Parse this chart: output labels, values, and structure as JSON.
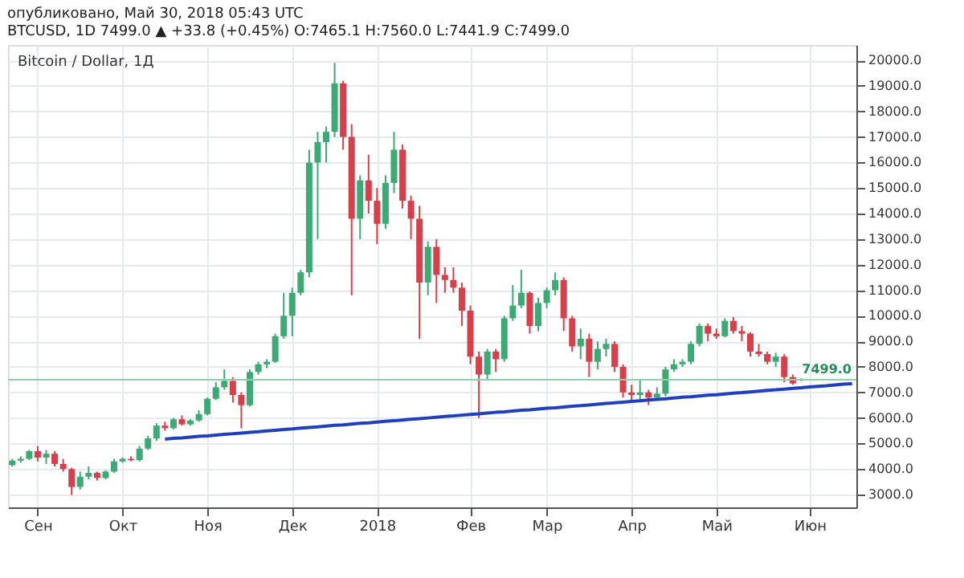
{
  "chart_data": {
    "type": "candlestick",
    "title": "Bitcoin / Dollar, 1Д",
    "annotations": [
      "опубликовано, Май 30, 2018 05:43 UTC",
      "BTCUSD, 1D 7499.0 ▲ +33.8 (+0.45%) O:7465.1 H:7560.0 L:7441.9 C:7499.0"
    ],
    "categories": [
      null,
      null,
      null,
      "Сен",
      null,
      null,
      null,
      null,
      null,
      null,
      null,
      null,
      null,
      "Окт",
      null,
      null,
      null,
      null,
      null,
      null,
      null,
      null,
      null,
      "Ноя",
      null,
      null,
      null,
      null,
      null,
      null,
      null,
      null,
      null,
      "Дек",
      null,
      null,
      null,
      null,
      null,
      null,
      null,
      null,
      null,
      "2018",
      null,
      null,
      null,
      null,
      null,
      null,
      null,
      null,
      null,
      null,
      "Фев",
      null,
      null,
      null,
      null,
      null,
      null,
      null,
      null,
      "Мар",
      null,
      null,
      null,
      null,
      null,
      null,
      null,
      null,
      null,
      "Апр",
      null,
      null,
      null,
      null,
      null,
      null,
      null,
      null,
      null,
      "Май",
      null,
      null,
      null,
      null,
      null,
      null,
      null,
      null,
      null,
      null,
      "Июн",
      null,
      null,
      null,
      null,
      null
    ],
    "ohlc": [
      [
        4150,
        4400,
        4100,
        4330
      ],
      [
        4330,
        4500,
        4250,
        4400
      ],
      [
        4400,
        4750,
        4350,
        4700
      ],
      [
        4700,
        4900,
        4300,
        4450
      ],
      [
        4450,
        4750,
        4200,
        4600
      ],
      [
        4600,
        4700,
        4100,
        4200
      ],
      [
        4200,
        4400,
        3900,
        4000
      ],
      [
        4000,
        4050,
        2980,
        3300
      ],
      [
        3300,
        3900,
        3200,
        3700
      ],
      [
        3700,
        4100,
        3600,
        3850
      ],
      [
        3850,
        3900,
        3550,
        3650
      ],
      [
        3650,
        3950,
        3600,
        3900
      ],
      [
        3900,
        4400,
        3850,
        4300
      ],
      [
        4300,
        4450,
        4250,
        4400
      ],
      [
        4400,
        4500,
        4300,
        4350
      ],
      [
        4350,
        4900,
        4300,
        4800
      ],
      [
        4800,
        5300,
        4750,
        5200
      ],
      [
        5200,
        5800,
        5100,
        5700
      ],
      [
        5700,
        5850,
        5500,
        5600
      ],
      [
        5600,
        6000,
        5550,
        5950
      ],
      [
        5950,
        6100,
        5700,
        5750
      ],
      [
        5750,
        5950,
        5700,
        5900
      ],
      [
        5900,
        6300,
        5850,
        6150
      ],
      [
        6150,
        6800,
        6100,
        6750
      ],
      [
        6750,
        7400,
        6700,
        7200
      ],
      [
        7200,
        7900,
        7100,
        7450
      ],
      [
        7450,
        7600,
        6600,
        6900
      ],
      [
        6900,
        7000,
        5600,
        6500
      ],
      [
        6500,
        7900,
        6450,
        7800
      ],
      [
        7800,
        8200,
        7700,
        8100
      ],
      [
        8100,
        8300,
        7950,
        8200
      ],
      [
        8200,
        9300,
        8150,
        9200
      ],
      [
        9200,
        10900,
        9100,
        10000
      ],
      [
        10000,
        11100,
        9200,
        10900
      ],
      [
        10900,
        11800,
        10800,
        11700
      ],
      [
        11700,
        16500,
        11500,
        16000
      ],
      [
        16000,
        17200,
        13000,
        16800
      ],
      [
        16800,
        17400,
        16000,
        17200
      ],
      [
        17200,
        19900,
        17000,
        19100
      ],
      [
        19100,
        19200,
        16500,
        17000
      ],
      [
        17000,
        17500,
        10800,
        13800
      ],
      [
        13800,
        15500,
        13000,
        15300
      ],
      [
        15300,
        16300,
        14000,
        14500
      ],
      [
        14500,
        15000,
        12800,
        13600
      ],
      [
        13600,
        15500,
        13400,
        15200
      ],
      [
        15200,
        17200,
        14800,
        16500
      ],
      [
        16500,
        16700,
        14200,
        14500
      ],
      [
        14500,
        14700,
        13000,
        13800
      ],
      [
        13800,
        14300,
        9100,
        11300
      ],
      [
        11300,
        12900,
        10800,
        12700
      ],
      [
        12700,
        13000,
        10500,
        11600
      ],
      [
        11600,
        11900,
        10900,
        11400
      ],
      [
        11400,
        11900,
        10900,
        11100
      ],
      [
        11100,
        11300,
        9600,
        10200
      ],
      [
        10200,
        10400,
        8100,
        8400
      ],
      [
        8400,
        8600,
        6000,
        7700
      ],
      [
        7700,
        8700,
        7500,
        8600
      ],
      [
        8600,
        8700,
        7800,
        8300
      ],
      [
        8300,
        10000,
        8200,
        9900
      ],
      [
        9900,
        11200,
        9800,
        10400
      ],
      [
        10400,
        11800,
        10300,
        10900
      ],
      [
        10900,
        10950,
        9300,
        9600
      ],
      [
        9600,
        10700,
        9400,
        10500
      ],
      [
        10500,
        11100,
        10300,
        11000
      ],
      [
        11000,
        11700,
        10800,
        11400
      ],
      [
        11400,
        11500,
        9400,
        9900
      ],
      [
        9900,
        10000,
        8600,
        8800
      ],
      [
        8800,
        9500,
        8300,
        9100
      ],
      [
        9100,
        9300,
        7600,
        8200
      ],
      [
        8200,
        9000,
        7900,
        8700
      ],
      [
        8700,
        9100,
        8400,
        8900
      ],
      [
        8900,
        9000,
        7800,
        8000
      ],
      [
        8000,
        8100,
        6800,
        7000
      ],
      [
        7000,
        7300,
        6700,
        6900
      ],
      [
        6900,
        7500,
        6700,
        7000
      ],
      [
        7000,
        7100,
        6500,
        6800
      ],
      [
        6800,
        7200,
        6700,
        6950
      ],
      [
        6950,
        8000,
        6850,
        7900
      ],
      [
        7900,
        8300,
        7800,
        8100
      ],
      [
        8100,
        8300,
        8000,
        8200
      ],
      [
        8200,
        9000,
        8100,
        8900
      ],
      [
        8900,
        9700,
        8800,
        9600
      ],
      [
        9600,
        9700,
        9000,
        9300
      ],
      [
        9300,
        9500,
        9100,
        9200
      ],
      [
        9200,
        9900,
        9150,
        9800
      ],
      [
        9800,
        9950,
        9300,
        9400
      ],
      [
        9400,
        9600,
        9000,
        9300
      ],
      [
        9300,
        9350,
        8400,
        8600
      ],
      [
        8600,
        8900,
        8400,
        8500
      ],
      [
        8500,
        8600,
        8100,
        8200
      ],
      [
        8200,
        8550,
        8000,
        8400
      ],
      [
        8400,
        8500,
        7400,
        7600
      ],
      [
        7600,
        7700,
        7300,
        7350
      ],
      [
        7465.1,
        7560.0,
        7441.9,
        7499.0
      ],
      null,
      null,
      null,
      null,
      null,
      null
    ],
    "colors": [
      "#3daa75",
      "#3daa75",
      "#3daa75",
      "#d7404b",
      "#3daa75",
      "#d7404b",
      "#d7404b",
      "#d7404b",
      "#3daa75",
      "#3daa75",
      "#d7404b",
      "#3daa75",
      "#3daa75",
      "#3daa75",
      "#d7404b",
      "#3daa75",
      "#3daa75",
      "#3daa75",
      "#d7404b",
      "#3daa75",
      "#d7404b",
      "#3daa75",
      "#3daa75",
      "#3daa75",
      "#3daa75",
      "#3daa75",
      "#d7404b",
      "#d7404b",
      "#3daa75",
      "#3daa75",
      "#3daa75",
      "#3daa75",
      "#3daa75",
      "#3daa75",
      "#3daa75",
      "#3daa75",
      "#3daa75",
      "#3daa75",
      "#3daa75",
      "#d7404b",
      "#d7404b",
      "#3daa75",
      "#d7404b",
      "#d7404b",
      "#3daa75",
      "#3daa75",
      "#d7404b",
      "#d7404b",
      "#d7404b",
      "#3daa75",
      "#d7404b",
      "#d7404b",
      "#d7404b",
      "#d7404b",
      "#d7404b",
      "#d7404b",
      "#3daa75",
      "#d7404b",
      "#3daa75",
      "#3daa75",
      "#3daa75",
      "#d7404b",
      "#3daa75",
      "#3daa75",
      "#3daa75",
      "#d7404b",
      "#d7404b",
      "#3daa75",
      "#d7404b",
      "#3daa75",
      "#3daa75",
      "#d7404b",
      "#d7404b",
      "#d7404b",
      "#3daa75",
      "#d7404b",
      "#3daa75",
      "#3daa75",
      "#3daa75",
      "#3daa75",
      "#3daa75",
      "#3daa75",
      "#d7404b",
      "#d7404b",
      "#3daa75",
      "#d7404b",
      "#d7404b",
      "#d7404b",
      "#d7404b",
      "#d7404b",
      "#3daa75",
      "#d7404b",
      "#d7404b",
      "#3daa75",
      null,
      null,
      null,
      null,
      null,
      null
    ],
    "series": [
      {
        "type": "line",
        "color": "#1f3fbf",
        "values": [
          null,
          null,
          null,
          null,
          null,
          null,
          null,
          null,
          null,
          null,
          null,
          null,
          null,
          null,
          null,
          null,
          null,
          null,
          5170,
          5200,
          5220,
          5250,
          5280,
          5300,
          5330,
          5360,
          5380,
          5410,
          5440,
          5460,
          5490,
          5520,
          5550,
          5570,
          5600,
          5630,
          5650,
          5680,
          5710,
          5730,
          5760,
          5790,
          5810,
          5840,
          5870,
          5890,
          5920,
          5950,
          5970,
          6000,
          6030,
          6060,
          6080,
          6110,
          6140,
          6160,
          6190,
          6220,
          6240,
          6270,
          6300,
          6320,
          6350,
          6380,
          6400,
          6430,
          6460,
          6480,
          6510,
          6540,
          6570,
          6590,
          6620,
          6650,
          6670,
          6700,
          6730,
          6750,
          6780,
          6810,
          6830,
          6860,
          6890,
          6910,
          6940,
          6970,
          6990,
          7020,
          7050,
          7080,
          7100,
          7130,
          7160,
          7180,
          7210,
          7240,
          7260,
          7290,
          7320,
          7340
        ]
      }
    ],
    "ref_lines": [
      {
        "axis": "y",
        "value": 7499.0,
        "label": "7499.0",
        "color": "#8fd1a8"
      }
    ],
    "ylim": [
      2500,
      20600
    ],
    "yticks": [
      {
        "value": 3000,
        "label": "3000.0"
      },
      {
        "value": 4000,
        "label": "4000.0"
      },
      {
        "value": 5000,
        "label": "5000.0"
      },
      {
        "value": 6000,
        "label": "6000.0"
      },
      {
        "value": 7000,
        "label": "7000.0"
      },
      {
        "value": 8000,
        "label": "8000.0"
      },
      {
        "value": 9000,
        "label": "9000.0"
      },
      {
        "value": 10000,
        "label": "10000.0"
      },
      {
        "value": 11000,
        "label": "11000.0"
      },
      {
        "value": 12000,
        "label": "12000.0"
      },
      {
        "value": 13000,
        "label": "13000.0"
      },
      {
        "value": 14000,
        "label": "14000.0"
      },
      {
        "value": 15000,
        "label": "15000.0"
      },
      {
        "value": 16000,
        "label": "16000.0"
      },
      {
        "value": 17000,
        "label": "17000.0"
      },
      {
        "value": 18000,
        "label": "18000.0"
      },
      {
        "value": 19000,
        "label": "19000.0"
      },
      {
        "value": 20000,
        "label": "20000.0"
      }
    ],
    "grid": true
  }
}
